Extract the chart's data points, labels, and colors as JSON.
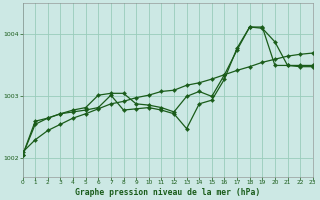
{
  "title": "Graphe pression niveau de la mer (hPa)",
  "background_color": "#cce8e4",
  "grid_color": "#99ccbb",
  "line_color": "#1a5c1a",
  "xlim": [
    0,
    23
  ],
  "ylim": [
    1001.7,
    1004.5
  ],
  "yticks": [
    1002,
    1003,
    1004
  ],
  "xticks": [
    0,
    1,
    2,
    3,
    4,
    5,
    6,
    7,
    8,
    9,
    10,
    11,
    12,
    13,
    14,
    15,
    16,
    17,
    18,
    19,
    20,
    21,
    22,
    23
  ],
  "s1_y": [
    1002.05,
    1002.55,
    1002.65,
    1002.72,
    1002.75,
    1002.78,
    1002.82,
    1003.02,
    1002.78,
    1002.8,
    1002.82,
    1002.78,
    1002.72,
    1002.48,
    1002.88,
    1002.94,
    1003.28,
    1003.78,
    1004.12,
    1004.1,
    1003.88,
    1003.5,
    1003.48,
    1003.48
  ],
  "s2_y": [
    1002.05,
    1002.6,
    1002.65,
    1002.72,
    1002.78,
    1002.82,
    1003.02,
    1003.05,
    1003.05,
    1002.88,
    1002.86,
    1002.82,
    1002.75,
    1003.0,
    1003.08,
    1003.0,
    1003.35,
    1003.75,
    1004.12,
    1004.12,
    1003.5,
    1003.5,
    1003.5,
    1003.5
  ],
  "s3_y": [
    1002.1,
    1002.3,
    1002.45,
    1002.55,
    1002.65,
    1002.72,
    1002.8,
    1002.88,
    1002.92,
    1002.98,
    1003.02,
    1003.08,
    1003.1,
    1003.18,
    1003.22,
    1003.28,
    1003.35,
    1003.42,
    1003.48,
    1003.55,
    1003.6,
    1003.65,
    1003.68,
    1003.7
  ]
}
